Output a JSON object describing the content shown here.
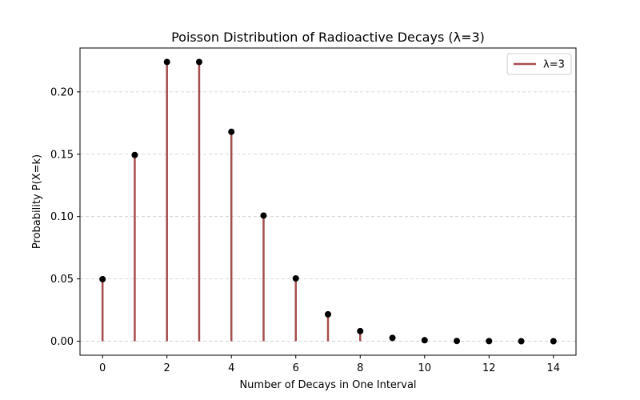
{
  "chart_data": {
    "type": "stem",
    "title": "Poisson Distribution of Radioactive Decays (λ=3)",
    "xlabel": "Number of Decays in One Interval",
    "ylabel": "Probability P(X=k)",
    "xlim": [
      -0.7,
      14.7
    ],
    "ylim": [
      -0.0112,
      0.2352
    ],
    "xticks": [
      0,
      2,
      4,
      6,
      8,
      10,
      12,
      14
    ],
    "xtick_labels": [
      "0",
      "2",
      "4",
      "6",
      "8",
      "10",
      "12",
      "14"
    ],
    "yticks": [
      0.0,
      0.05,
      0.1,
      0.15,
      0.2
    ],
    "ytick_labels": [
      "0.00",
      "0.05",
      "0.10",
      "0.15",
      "0.20"
    ],
    "grid": {
      "y": true,
      "x": false,
      "style": "dashed"
    },
    "legend": {
      "position": "top-right"
    },
    "series": [
      {
        "name": "λ=3",
        "color": "#a64d4d",
        "marker_color": "#000000",
        "x": [
          0,
          1,
          2,
          3,
          4,
          5,
          6,
          7,
          8,
          9,
          10,
          11,
          12,
          13,
          14
        ],
        "y": [
          0.0498,
          0.1494,
          0.224,
          0.224,
          0.168,
          0.1008,
          0.0504,
          0.0216,
          0.0081,
          0.0027,
          0.0008,
          0.0002,
          0.0001,
          1e-05,
          2e-06
        ]
      }
    ]
  }
}
